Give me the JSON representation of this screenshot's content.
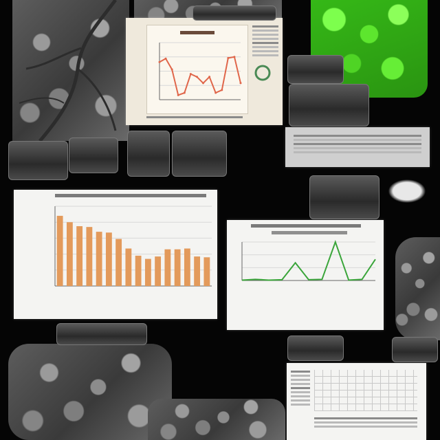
{
  "chart_data": [
    {
      "type": "line",
      "x": [
        1,
        2,
        3,
        4,
        5,
        6,
        7,
        8,
        9,
        10,
        11,
        12,
        13,
        14
      ],
      "series": [
        {
          "values": [
            66,
            72,
            53,
            8,
            12,
            45,
            40,
            29,
            40,
            12,
            17,
            73,
            75,
            29
          ]
        }
      ],
      "ylim": [
        0,
        100
      ],
      "color": "#e0664a"
    },
    {
      "type": "bar",
      "categories": [
        "",
        "",
        "",
        "",
        "",
        "",
        "",
        "",
        "",
        "",
        "",
        "",
        "",
        "",
        "",
        ""
      ],
      "values": [
        88,
        80,
        75,
        74,
        68,
        67,
        59,
        47,
        38,
        34,
        37,
        46,
        46,
        47,
        37,
        36
      ],
      "ylim": [
        0,
        100
      ],
      "color": "#e39a5b"
    },
    {
      "type": "line",
      "x": [
        1,
        2,
        3,
        4,
        5,
        6,
        7,
        8,
        9,
        10,
        11
      ],
      "series": [
        {
          "values": [
            1,
            3,
            1,
            2,
            46,
            2,
            3,
            100,
            1,
            3,
            55
          ]
        }
      ],
      "ylim": [
        0,
        100
      ],
      "color": "#3aa53a"
    }
  ],
  "colors": {
    "background": "#050505",
    "specimen_gray": "#7a7a7a",
    "specimen_green": "#5de62e"
  }
}
